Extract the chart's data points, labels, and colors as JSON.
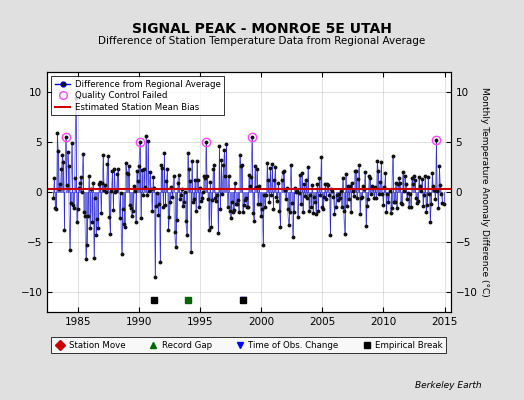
{
  "title": "SIGNAL PEAK - MONROE 5E UTAH",
  "subtitle": "Difference of Station Temperature Data from Regional Average",
  "ylabel": "Monthly Temperature Anomaly Difference (°C)",
  "xlim": [
    1982.5,
    2015.5
  ],
  "ylim": [
    -12,
    12
  ],
  "yticks": [
    -10,
    -5,
    0,
    5,
    10
  ],
  "xticks": [
    1985,
    1990,
    1995,
    2000,
    2005,
    2010,
    2015
  ],
  "bias_line_y": 0.3,
  "background_color": "#e0e0e0",
  "plot_bg_color": "#ffffff",
  "line_color": "#0000cc",
  "bias_color": "#cc0000",
  "qc_color": "#ff44ff",
  "marker_color": "#111111",
  "watermark": "Berkeley Earth",
  "record_gap_times": [
    1994.0
  ],
  "obs_change_times": [
    1998.5
  ],
  "empirical_break_times": [
    1991.25,
    1998.5
  ],
  "start_year": 1983,
  "end_year": 2014
}
